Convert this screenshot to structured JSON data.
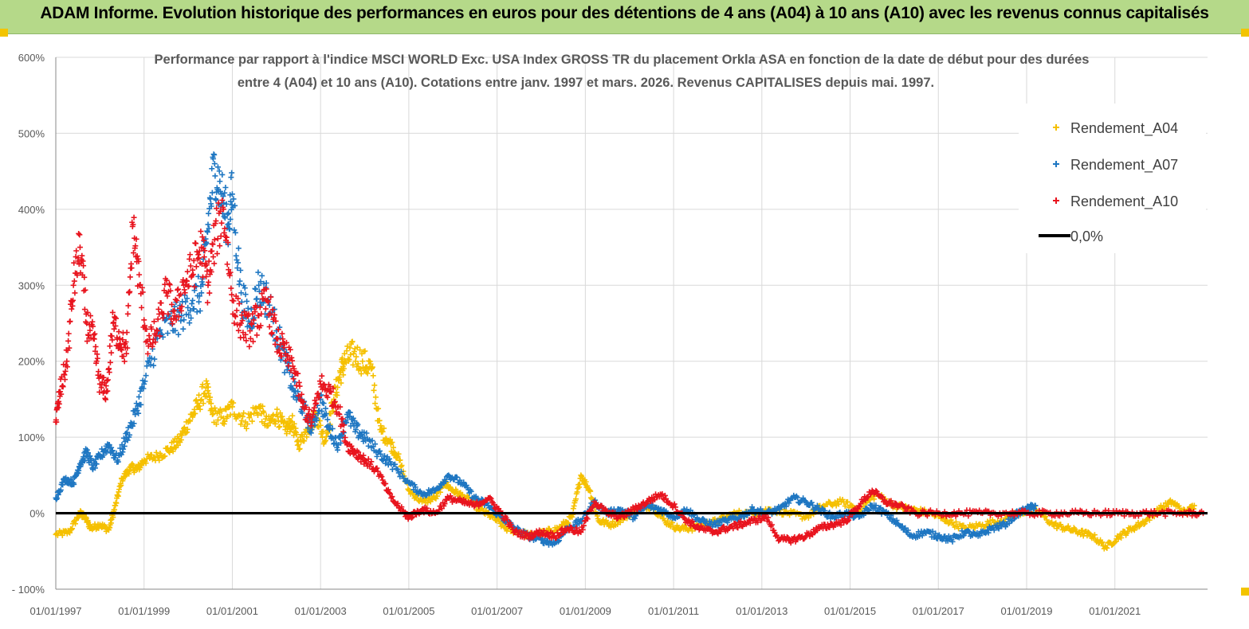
{
  "banner": {
    "title": "ADAM Informe. Evolution historique des performances en euros pour des détentions de 4 ans (A04) à 10 ans (A10) avec les revenus connus capitalisés"
  },
  "chart_data": {
    "type": "scatter",
    "title_line1": "Performance par rapport à l'indice MSCI WORLD Exc. USA Index GROSS TR  du placement Orkla ASA en fonction de la date de début pour des durées",
    "title_line2": "entre 4 (A04) et 10 ans (A10). Cotations entre janv. 1997 et mars. 2026. Revenus CAPITALISES depuis mai. 1997.",
    "xlabel": "",
    "ylabel": "",
    "xlim": [
      1997.0,
      2023.1
    ],
    "ylim": [
      -100,
      600
    ],
    "y_ticks": [
      -100,
      0,
      100,
      200,
      300,
      400,
      500,
      600
    ],
    "y_tick_labels": [
      "- 100%",
      "0%",
      "100%",
      "200%",
      "300%",
      "400%",
      "500%",
      "600%"
    ],
    "x_ticks": [
      1997,
      1999,
      2001,
      2003,
      2005,
      2007,
      2009,
      2011,
      2013,
      2015,
      2017,
      2019,
      2021
    ],
    "x_tick_labels": [
      "01/01/1997",
      "01/01/1999",
      "01/01/2001",
      "01/01/2003",
      "01/01/2005",
      "01/01/2007",
      "01/01/2009",
      "01/01/2011",
      "01/01/2013",
      "01/01/2015",
      "01/01/2017",
      "01/01/2019",
      "01/01/2021"
    ],
    "grid": true,
    "legend_position": "top-right",
    "zero_line": {
      "name": "0,0%",
      "value": 0,
      "color": "#000000"
    },
    "series": [
      {
        "name": "Rendement_A04",
        "color": "#f5c000",
        "x": [
          1997.0,
          1997.3,
          1997.55,
          1997.65,
          1997.8,
          1998.0,
          1998.2,
          1998.35,
          1998.5,
          1998.7,
          1998.85,
          1999.0,
          1999.3,
          1999.6,
          1999.8,
          2000.0,
          2000.2,
          2000.4,
          2000.55,
          2000.8,
          2001.0,
          2001.3,
          2001.6,
          2001.8,
          2002.0,
          2002.2,
          2002.35,
          2002.5,
          2002.7,
          2002.9,
          2003.1,
          2003.3,
          2003.45,
          2003.55,
          2003.75,
          2003.95,
          2004.15,
          2004.35,
          2004.55,
          2004.75,
          2005.0,
          2005.3,
          2005.6,
          2005.8,
          2006.0,
          2006.3,
          2006.6,
          2006.9,
          2007.2,
          2007.5,
          2007.8,
          2008.1,
          2008.4,
          2008.7,
          2008.9,
          2009.1,
          2009.3,
          2009.6,
          2009.9,
          2010.2,
          2010.5,
          2010.8,
          2011.1,
          2011.4,
          2011.7,
          2012.0,
          2012.4,
          2012.8,
          2013.2,
          2013.6,
          2014.0,
          2014.4,
          2014.8,
          2015.2,
          2015.6,
          2016.0,
          2016.4,
          2016.8,
          2017.2,
          2017.6,
          2018.0,
          2018.4,
          2018.8,
          2019.2,
          2019.6,
          2019.9,
          2020.2,
          2020.5,
          2020.8,
          2021.1,
          2021.4,
          2021.7,
          2022.0,
          2022.3,
          2022.6,
          2022.8
        ],
        "y": [
          -28,
          -25,
          0,
          -5,
          -20,
          -15,
          -22,
          10,
          45,
          60,
          58,
          70,
          75,
          85,
          95,
          120,
          140,
          165,
          130,
          125,
          140,
          120,
          140,
          115,
          130,
          110,
          120,
          90,
          110,
          130,
          95,
          150,
          185,
          200,
          210,
          200,
          190,
          110,
          95,
          75,
          30,
          15,
          20,
          40,
          30,
          20,
          5,
          -5,
          -20,
          -25,
          -30,
          -25,
          -20,
          -5,
          50,
          30,
          -10,
          -15,
          -5,
          5,
          10,
          -10,
          -20,
          -20,
          -15,
          -10,
          0,
          0,
          5,
          0,
          -5,
          10,
          15,
          5,
          25,
          10,
          5,
          0,
          -10,
          -20,
          -15,
          -10,
          0,
          5,
          -15,
          -20,
          -25,
          -30,
          -45,
          -30,
          -20,
          -10,
          5,
          15,
          0,
          10
        ]
      },
      {
        "name": "Rendement_A07",
        "color": "#1f77c2",
        "x": [
          1997.0,
          1997.2,
          1997.4,
          1997.55,
          1997.7,
          1997.85,
          1998.0,
          1998.2,
          1998.4,
          1998.6,
          1998.8,
          1999.0,
          1999.3,
          1999.6,
          1999.85,
          2000.1,
          2000.3,
          2000.45,
          2000.6,
          2000.75,
          2000.9,
          2001.0,
          2001.2,
          2001.4,
          2001.6,
          2001.8,
          2002.0,
          2002.2,
          2002.4,
          2002.6,
          2002.8,
          2003.0,
          2003.2,
          2003.4,
          2003.6,
          2003.8,
          2004.0,
          2004.3,
          2004.6,
          2005.0,
          2005.3,
          2005.6,
          2005.9,
          2006.2,
          2006.5,
          2006.8,
          2007.1,
          2007.4,
          2007.7,
          2008.0,
          2008.3,
          2008.6,
          2008.9,
          2009.2,
          2009.5,
          2009.8,
          2010.1,
          2010.4,
          2010.7,
          2011.0,
          2011.3,
          2011.6,
          2011.9,
          2012.2,
          2012.5,
          2012.8,
          2013.1,
          2013.4,
          2013.7,
          2014.0,
          2014.3,
          2014.6,
          2014.9,
          2015.2,
          2015.5,
          2015.8,
          2016.1,
          2016.4,
          2016.7,
          2017.0,
          2017.3,
          2017.6,
          2017.9,
          2018.2,
          2018.5,
          2018.8,
          2019.0,
          2019.2
        ],
        "y": [
          20,
          45,
          40,
          65,
          80,
          60,
          75,
          90,
          70,
          100,
          130,
          170,
          230,
          250,
          260,
          280,
          290,
          380,
          460,
          420,
          380,
          420,
          290,
          250,
          300,
          280,
          240,
          200,
          160,
          140,
          110,
          150,
          110,
          90,
          130,
          110,
          100,
          80,
          65,
          40,
          25,
          30,
          50,
          40,
          20,
          10,
          -5,
          -20,
          -30,
          -35,
          -40,
          -20,
          -10,
          15,
          0,
          5,
          -5,
          10,
          5,
          -5,
          5,
          -10,
          -15,
          -10,
          -5,
          5,
          0,
          5,
          20,
          15,
          5,
          -5,
          0,
          -5,
          10,
          0,
          -15,
          -30,
          -25,
          -30,
          -35,
          -25,
          -30,
          -20,
          -15,
          0,
          5,
          10
        ]
      },
      {
        "name": "Rendement_A10",
        "color": "#e8141e",
        "x": [
          1997.0,
          1997.1,
          1997.25,
          1997.4,
          1997.55,
          1997.7,
          1997.85,
          1998.0,
          1998.15,
          1998.3,
          1998.45,
          1998.6,
          1998.75,
          1998.9,
          1999.1,
          1999.3,
          1999.5,
          1999.7,
          1999.9,
          2000.1,
          2000.3,
          2000.45,
          2000.6,
          2000.8,
          2001.0,
          2001.2,
          2001.4,
          2001.6,
          2001.8,
          2002.0,
          2002.2,
          2002.4,
          2002.6,
          2002.8,
          2003.0,
          2003.2,
          2003.4,
          2003.6,
          2003.8,
          2004.0,
          2004.3,
          2004.6,
          2004.9,
          2005.0,
          2005.3,
          2005.6,
          2005.9,
          2006.2,
          2006.5,
          2006.8,
          2007.1,
          2007.4,
          2007.7,
          2008.0,
          2008.3,
          2008.6,
          2008.9,
          2009.2,
          2009.5,
          2009.8,
          2010.1,
          2010.4,
          2010.7,
          2011.0,
          2011.3,
          2011.6,
          2011.9,
          2012.2,
          2012.5,
          2012.8,
          2013.1,
          2013.4,
          2013.7,
          2014.0,
          2014.3,
          2014.6,
          2014.9,
          2015.2,
          2015.5,
          2015.8,
          2016.1,
          2016.5,
          2017.0,
          2017.5,
          2018.0,
          2018.5,
          2019.0,
          2019.5,
          2020.0,
          2020.5,
          2021.0,
          2021.5,
          2022.0,
          2022.5,
          2023.0
        ],
        "y": [
          120,
          160,
          200,
          300,
          350,
          250,
          230,
          170,
          160,
          250,
          230,
          210,
          380,
          300,
          220,
          240,
          290,
          260,
          300,
          320,
          350,
          300,
          360,
          400,
          280,
          250,
          240,
          260,
          280,
          230,
          210,
          190,
          140,
          120,
          170,
          160,
          140,
          90,
          80,
          70,
          55,
          20,
          0,
          -5,
          5,
          0,
          20,
          15,
          10,
          20,
          0,
          -25,
          -30,
          -25,
          -30,
          -20,
          -25,
          15,
          0,
          -5,
          5,
          15,
          25,
          10,
          -10,
          -20,
          -25,
          -20,
          -15,
          -10,
          -5,
          -35,
          -35,
          -30,
          -20,
          -15,
          -10,
          10,
          30,
          15,
          10,
          0,
          0,
          0,
          0,
          0,
          0,
          0,
          0,
          0,
          0,
          0,
          0,
          0,
          0
        ]
      }
    ]
  }
}
